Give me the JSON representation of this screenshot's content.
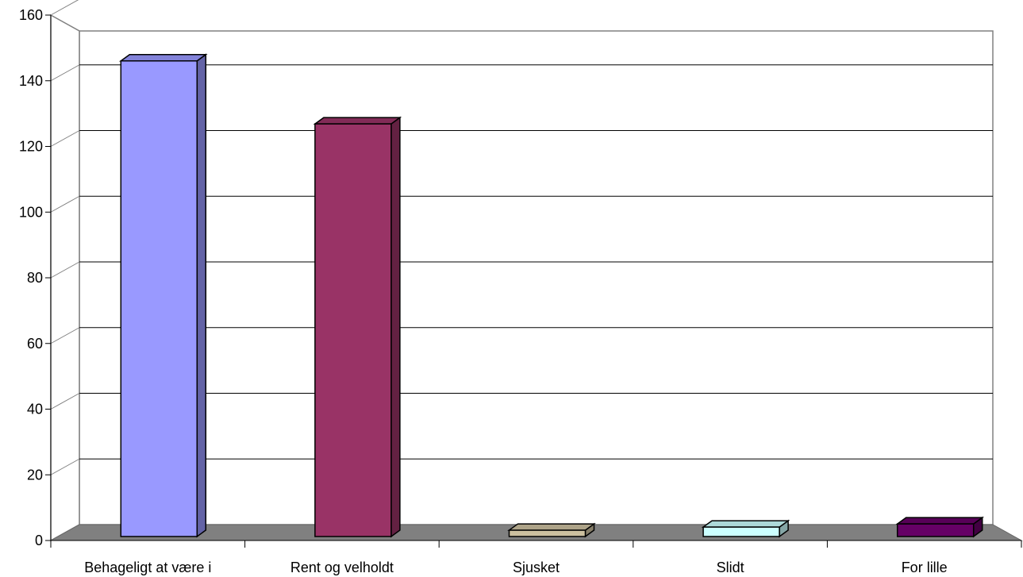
{
  "chart_data": {
    "type": "bar",
    "categories": [
      "Behageligt at være i",
      "Rent og velholdt",
      "Sjusket",
      "Slidt",
      "For lille"
    ],
    "values": [
      151,
      131,
      2,
      3,
      4
    ],
    "colors": [
      "#9999ff",
      "#993366",
      "#ccc0a0",
      "#ccffff",
      "#660066"
    ],
    "ylim": [
      0,
      160
    ],
    "yticks": [
      0,
      20,
      40,
      60,
      80,
      100,
      120,
      140,
      160
    ],
    "grid": true,
    "style": "3d"
  }
}
